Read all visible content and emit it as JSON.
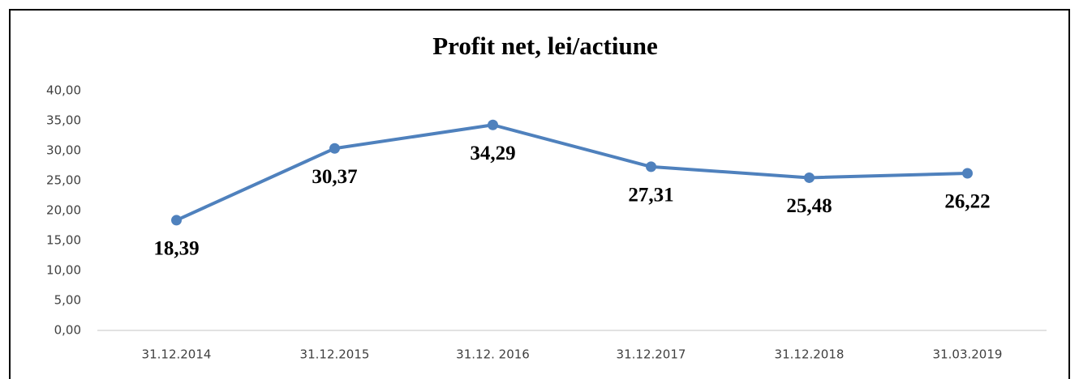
{
  "chart_data": {
    "type": "line",
    "title": "Profit net,  lei/actiune",
    "categories": [
      "31.12.2014",
      "31.12.2015",
      "31.12. 2016",
      "31.12.2017",
      "31.12.2018",
      "31.03.2019"
    ],
    "values": [
      18.39,
      30.37,
      34.29,
      27.31,
      25.48,
      26.22
    ],
    "value_labels": [
      "18,39",
      "30,37",
      "34,29",
      "27,31",
      "25,48",
      "26,22"
    ],
    "color": "#4f81bd",
    "ylim": [
      0,
      40
    ],
    "yticks": [
      {
        "value": 0,
        "label": "0,00"
      },
      {
        "value": 5,
        "label": "5,00"
      },
      {
        "value": 10,
        "label": "10,00"
      },
      {
        "value": 15,
        "label": "15,00"
      },
      {
        "value": 20,
        "label": "20,00"
      },
      {
        "value": 25,
        "label": "25,00"
      },
      {
        "value": 30,
        "label": "30,00"
      },
      {
        "value": 35,
        "label": "35,00"
      },
      {
        "value": 40,
        "label": "40,00"
      }
    ],
    "grid": false
  }
}
